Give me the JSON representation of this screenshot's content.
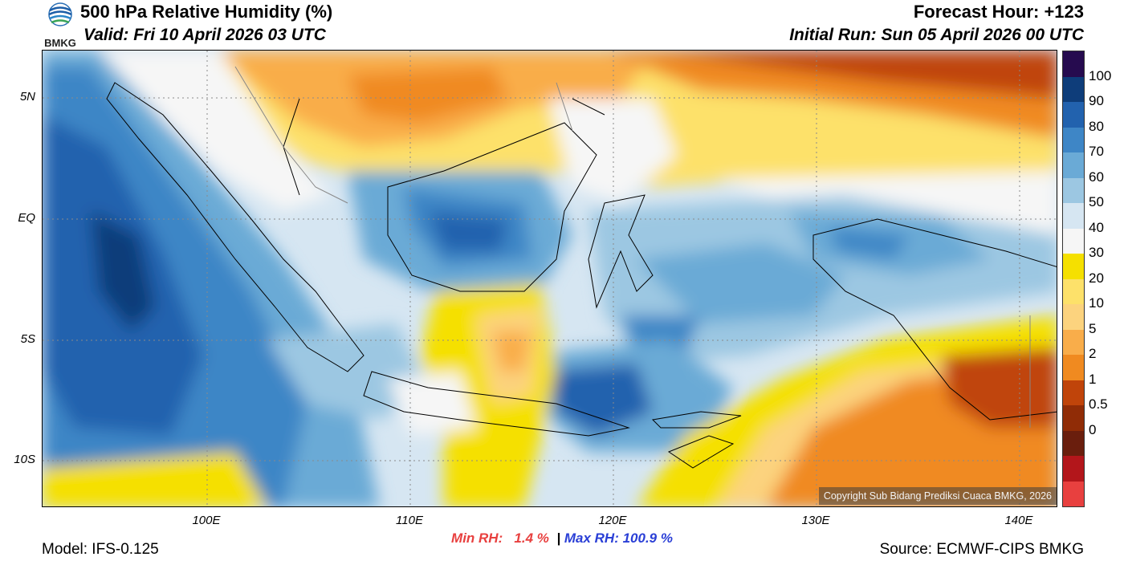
{
  "header": {
    "logo_text": "BMKG",
    "title": "500 hPa Relative Humidity (%)",
    "valid": "Valid: Fri 10 April 2026 03 UTC",
    "forecast_hour": "Forecast Hour: +123",
    "initial_run": "Initial Run: Sun 05 April 2026 00 UTC"
  },
  "axes": {
    "lat_labels": [
      "5N",
      "EQ",
      "5S",
      "10S"
    ],
    "lon_labels": [
      "100E",
      "110E",
      "120E",
      "130E",
      "140E"
    ]
  },
  "stats": {
    "min_rh": "Min RH:   1.4 %",
    "separator": "|",
    "max_rh": "Max RH: 100.9 %"
  },
  "footer": {
    "model": "Model: IFS-0.125",
    "source": "Source: ECMWF-CIPS BMKG",
    "copyright": "Copyright Sub Bidang Prediksi Cuaca BMKG, 2026"
  },
  "colorbar": {
    "labels": [
      "100",
      "90",
      "80",
      "70",
      "60",
      "50",
      "40",
      "30",
      "20",
      "10",
      "5",
      "2",
      "1",
      "0.5",
      "0"
    ],
    "colors": [
      "#e8403f",
      "#b3161b",
      "#6a1e0d",
      "#902c06",
      "#c0440a",
      "#f08a20",
      "#f9ad4a",
      "#fcd37e",
      "#fde16a",
      "#f5e000",
      "#f6f6f6",
      "#d6e6f2",
      "#9cc7e2",
      "#6aaad6",
      "#3e86c6",
      "#2262ae",
      "#0e3d7a",
      "#260b4f"
    ]
  }
}
